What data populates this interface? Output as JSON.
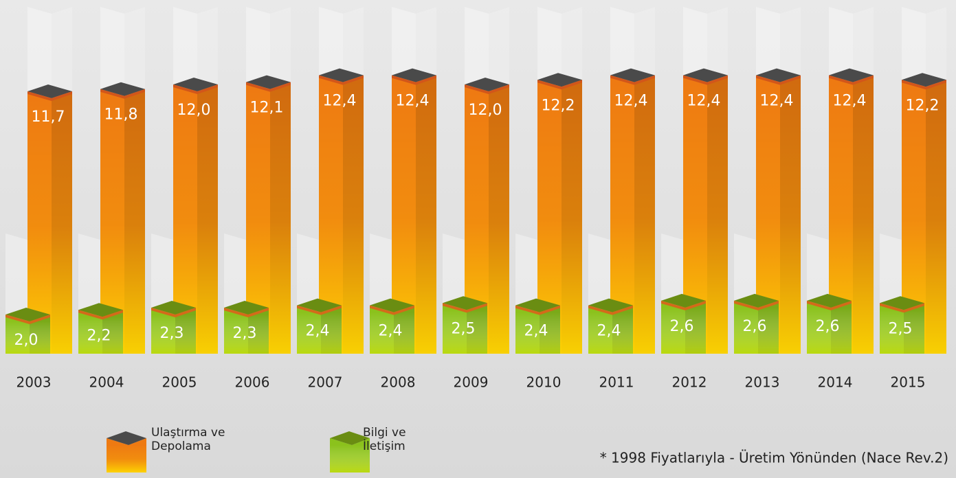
{
  "chart_data": {
    "type": "bar3d",
    "categories": [
      "2003",
      "2004",
      "2005",
      "2006",
      "2007",
      "2008",
      "2009",
      "2010",
      "2011",
      "2012",
      "2013",
      "2014",
      "2015"
    ],
    "series": [
      {
        "name": "Ulaştırma ve Depolama",
        "color": "#ee7a12",
        "values": [
          11.7,
          11.8,
          12.0,
          12.1,
          12.4,
          12.4,
          12.0,
          12.2,
          12.4,
          12.4,
          12.4,
          12.4,
          12.2
        ],
        "value_labels": [
          "11,7",
          "11,8",
          "12,0",
          "12,1",
          "12,4",
          "12,4",
          "12,0",
          "12,2",
          "12,4",
          "12,4",
          "12,4",
          "12,4",
          "12,2"
        ]
      },
      {
        "name": "Bilgi ve İletişim",
        "color": "#8bc21c",
        "values": [
          2.0,
          2.2,
          2.3,
          2.3,
          2.4,
          2.4,
          2.5,
          2.4,
          2.4,
          2.6,
          2.6,
          2.6,
          2.5
        ],
        "value_labels": [
          "2,0",
          "2,2",
          "2,3",
          "2,3",
          "2,4",
          "2,4",
          "2,5",
          "2,4",
          "2,4",
          "2,6",
          "2,6",
          "2,6",
          "2,5"
        ]
      }
    ],
    "note": "* 1998 Fiyatlarıyla - Üretim Yönünden (Nace Rev.2)"
  }
}
